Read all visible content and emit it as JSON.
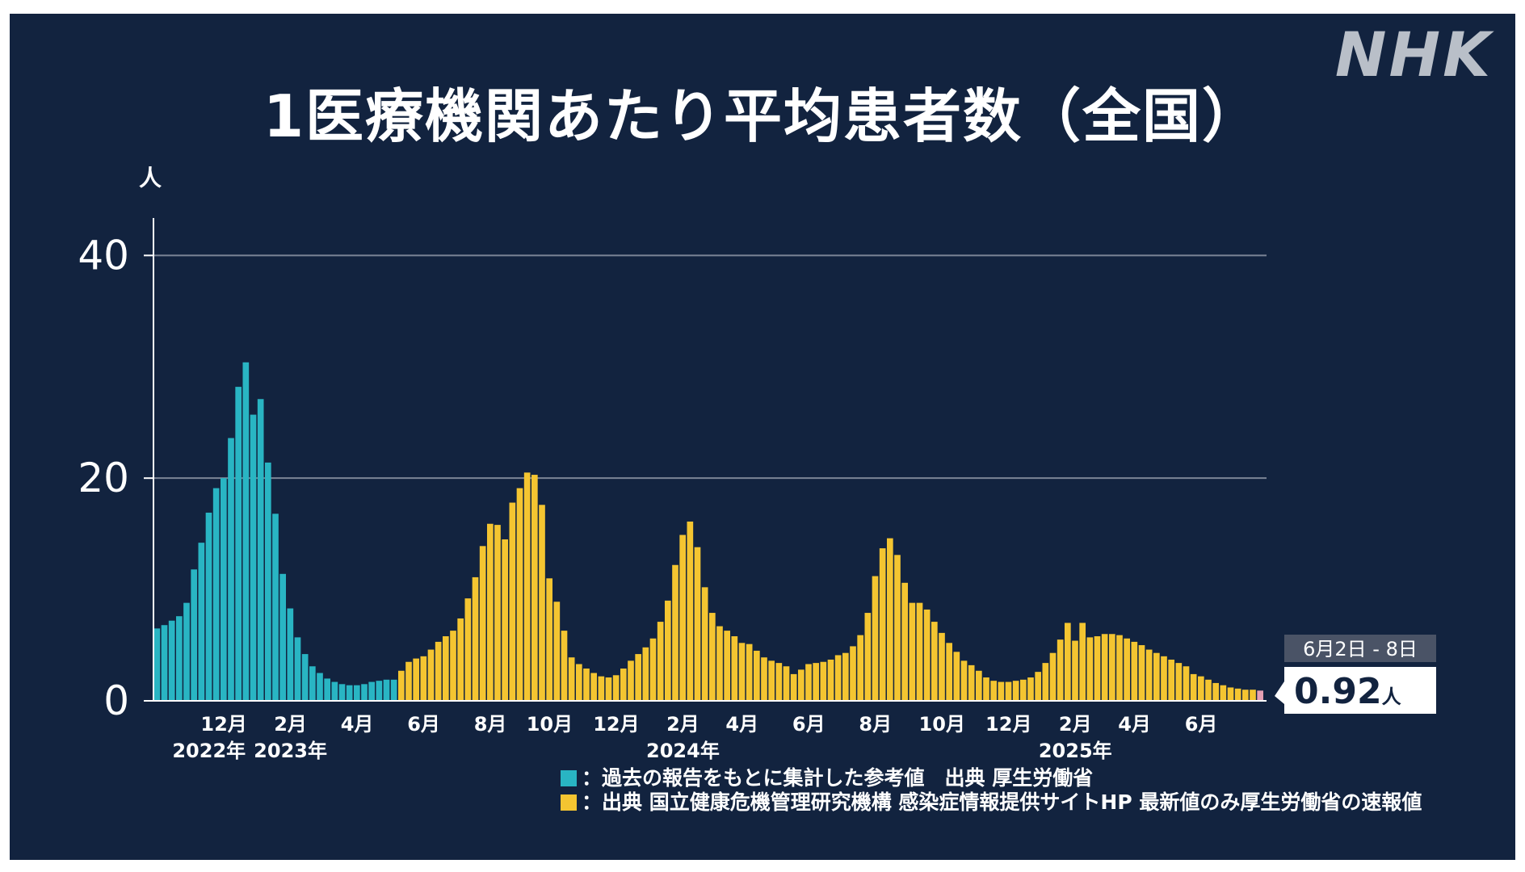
{
  "brand": "NHK",
  "title": "1医療機関あたり平均患者数（全国）",
  "colors": {
    "background": "#12233f",
    "past": "#29b5c3",
    "current": "#f4c531",
    "latest": "#e6a0b4",
    "axis": "#ffffff",
    "grid": "#7b8596"
  },
  "legend": [
    {
      "swatch": "past",
      "label": "：過去の報告をもとに集計した参考値　出典 厚生労働省"
    },
    {
      "swatch": "current",
      "label": "：出典 国立健康危機管理研究機構 感染症情報提供サイトHP 最新値のみ厚生労働省の速報値"
    }
  ],
  "latest_callout": {
    "period": "6月2日 - 8日",
    "value": "0.92",
    "unit": "人"
  },
  "chart_data": {
    "type": "bar",
    "ylabel": "人",
    "ylim": [
      0,
      43
    ],
    "yticks": [
      0,
      20,
      40
    ],
    "gridlines": [
      20,
      40
    ],
    "month_labels": [
      {
        "label": "12月",
        "week": 9
      },
      {
        "label": "2月",
        "week": 18
      },
      {
        "label": "4月",
        "week": 27
      },
      {
        "label": "6月",
        "week": 36
      },
      {
        "label": "8月",
        "week": 45
      },
      {
        "label": "10月",
        "week": 53
      },
      {
        "label": "12月",
        "week": 62
      },
      {
        "label": "2月",
        "week": 71
      },
      {
        "label": "4月",
        "week": 79
      },
      {
        "label": "6月",
        "week": 88
      },
      {
        "label": "8月",
        "week": 97
      },
      {
        "label": "10月",
        "week": 106
      },
      {
        "label": "12月",
        "week": 115
      },
      {
        "label": "2月",
        "week": 124
      },
      {
        "label": "4月",
        "week": 132
      },
      {
        "label": "6月",
        "week": 141
      }
    ],
    "year_labels": [
      {
        "label": "2022年",
        "week": 7
      },
      {
        "label": "2023年",
        "week": 18
      },
      {
        "label": "2024年",
        "week": 71
      },
      {
        "label": "2025年",
        "week": 124
      }
    ],
    "series": [
      {
        "name": "過去の報告をもとに集計した参考値",
        "color": "past",
        "start_week": 0,
        "values": [
          6.5,
          6.8,
          7.2,
          7.6,
          8.8,
          11.8,
          14.2,
          16.9,
          19.1,
          20,
          23.6,
          28.2,
          30.4,
          25.7,
          27.1,
          21.4,
          16.8,
          11.4,
          8.3,
          5.7,
          4.2,
          3.1,
          2.5,
          2,
          1.7,
          1.5,
          1.4,
          1.4,
          1.5,
          1.7,
          1.8,
          1.9,
          1.9
        ]
      },
      {
        "name": "出典 国立健康危機管理研究機構 感染症情報提供サイトHP",
        "color": "current",
        "start_week": 33,
        "values": [
          2.7,
          3.5,
          3.8,
          4,
          4.6,
          5.3,
          5.8,
          6.3,
          7.4,
          9.2,
          11.1,
          13.9,
          15.9,
          15.8,
          14.5,
          17.8,
          19.1,
          20.5,
          20.3,
          17.6,
          11,
          8.9,
          6.3,
          3.9,
          3.3,
          2.9,
          2.5,
          2.2,
          2.1,
          2.3,
          2.9,
          3.6,
          4.2,
          4.8,
          5.6,
          7.1,
          9,
          12.2,
          14.9,
          16.1,
          13.8,
          10.2,
          7.9,
          6.7,
          6.3,
          5.8,
          5.2,
          5.1,
          4.5,
          3.9,
          3.6,
          3.4,
          3.1,
          2.4,
          2.8,
          3.3,
          3.4,
          3.5,
          3.7,
          4.1,
          4.3,
          4.9,
          5.9,
          7.9,
          11.2,
          13.7,
          14.6,
          13.1,
          10.6,
          8.8,
          8.8,
          8.2,
          7.1,
          6.1,
          5.2,
          4.4,
          3.6,
          3.2,
          2.7,
          2.1,
          1.8,
          1.7,
          1.7,
          1.8,
          1.9,
          2.1,
          2.6,
          3.4,
          4.3,
          5.5,
          7,
          5.4,
          7,
          5.7,
          5.8,
          6,
          6,
          5.9,
          5.6,
          5.3,
          5,
          4.6,
          4.3,
          4,
          3.7,
          3.4,
          3.1,
          2.4,
          2.2,
          1.9,
          1.6,
          1.4,
          1.2,
          1.1,
          1,
          1,
          0.92
        ]
      }
    ]
  }
}
